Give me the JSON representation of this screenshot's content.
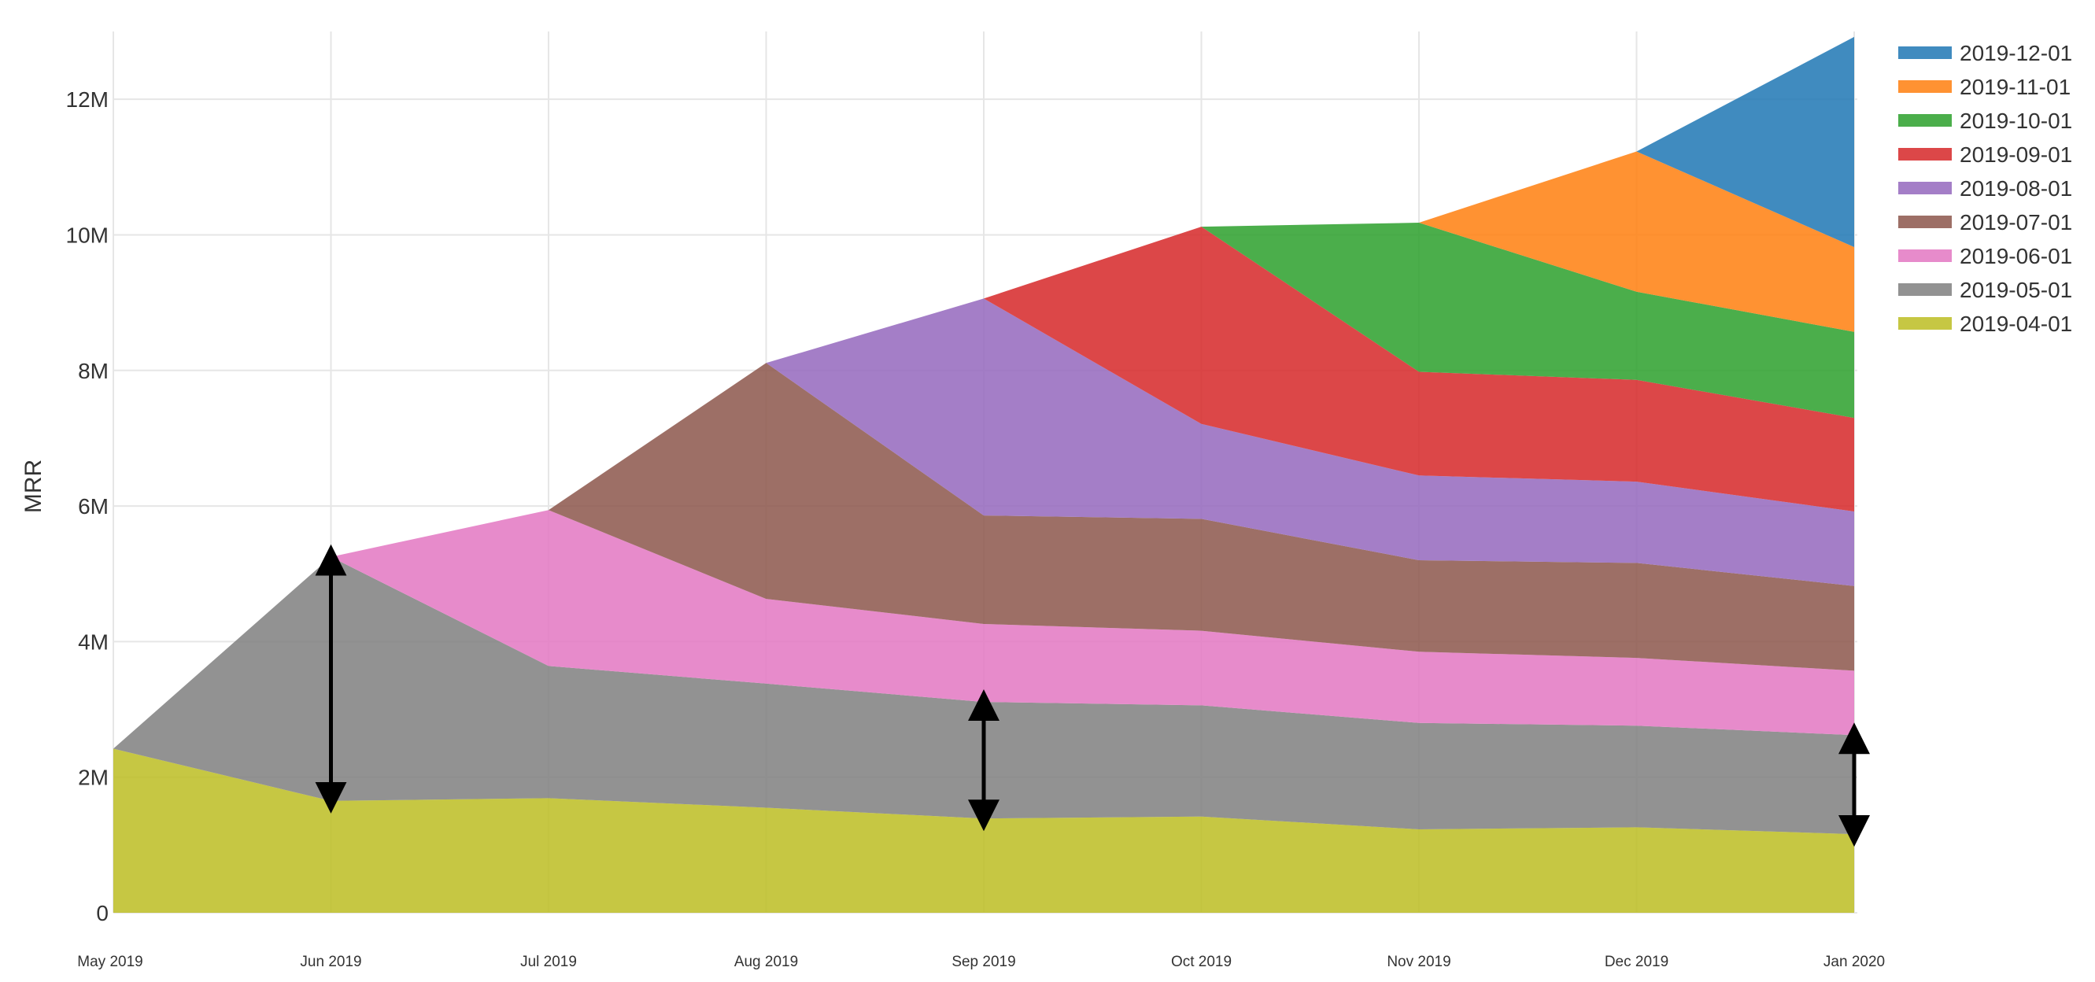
{
  "chart_data": {
    "type": "area",
    "stacked": true,
    "title": "",
    "xlabel": "",
    "ylabel": "MRR",
    "ylim": [
      0,
      13000000
    ],
    "yticks": [
      0,
      2000000,
      4000000,
      6000000,
      8000000,
      10000000,
      12000000
    ],
    "ytick_labels": [
      "0",
      "2M",
      "4M",
      "6M",
      "8M",
      "10M",
      "12M"
    ],
    "categories": [
      "May 2019",
      "Jun 2019",
      "Jul 2019",
      "Aug 2019",
      "Sep 2019",
      "Oct 2019",
      "Nov 2019",
      "Dec 2019",
      "Jan 2020"
    ],
    "grid": true,
    "legend_position": "top-right",
    "series": [
      {
        "name": "2019-04-01",
        "color": "#bcbd22",
        "values": [
          2.42,
          1.65,
          1.69,
          1.55,
          1.39,
          1.42,
          1.23,
          1.26,
          1.16
        ]
      },
      {
        "name": "2019-05-01",
        "color": "#7f7f7f",
        "values": [
          0,
          3.6,
          1.95,
          1.83,
          1.72,
          1.64,
          1.57,
          1.5,
          1.46
        ]
      },
      {
        "name": "2019-06-01",
        "color": "#e377c2",
        "values": [
          0,
          0,
          2.3,
          1.25,
          1.15,
          1.1,
          1.05,
          1.0,
          0.95
        ]
      },
      {
        "name": "2019-07-01",
        "color": "#8c564b",
        "values": [
          0,
          0,
          0,
          3.48,
          1.6,
          1.65,
          1.35,
          1.4,
          1.25
        ]
      },
      {
        "name": "2019-08-01",
        "color": "#9467bd",
        "values": [
          0,
          0,
          0,
          0,
          3.2,
          1.4,
          1.25,
          1.2,
          1.1
        ]
      },
      {
        "name": "2019-09-01",
        "color": "#d62728",
        "values": [
          0,
          0,
          0,
          0,
          0,
          2.91,
          1.53,
          1.5,
          1.38
        ]
      },
      {
        "name": "2019-10-01",
        "color": "#2ca02c",
        "values": [
          0,
          0,
          0,
          0,
          0,
          0,
          2.2,
          1.3,
          1.27
        ]
      },
      {
        "name": "2019-11-01",
        "color": "#ff7f0e",
        "values": [
          0,
          0,
          0,
          0,
          0,
          0,
          0,
          2.07,
          1.25
        ]
      },
      {
        "name": "2019-12-01",
        "color": "#1f77b4",
        "values": [
          0,
          0,
          0,
          0,
          0,
          0,
          0,
          0,
          3.1
        ]
      }
    ],
    "value_unit_multiplier": 1000000,
    "annotations": [
      {
        "type": "double-arrow",
        "x": "Jun 2019",
        "from": 1.65,
        "to": 5.25
      },
      {
        "type": "double-arrow",
        "x": "Sep 2019",
        "from": 1.39,
        "to": 3.11
      },
      {
        "type": "double-arrow",
        "x": "Jan 2020",
        "from": 1.16,
        "to": 2.62
      }
    ]
  }
}
